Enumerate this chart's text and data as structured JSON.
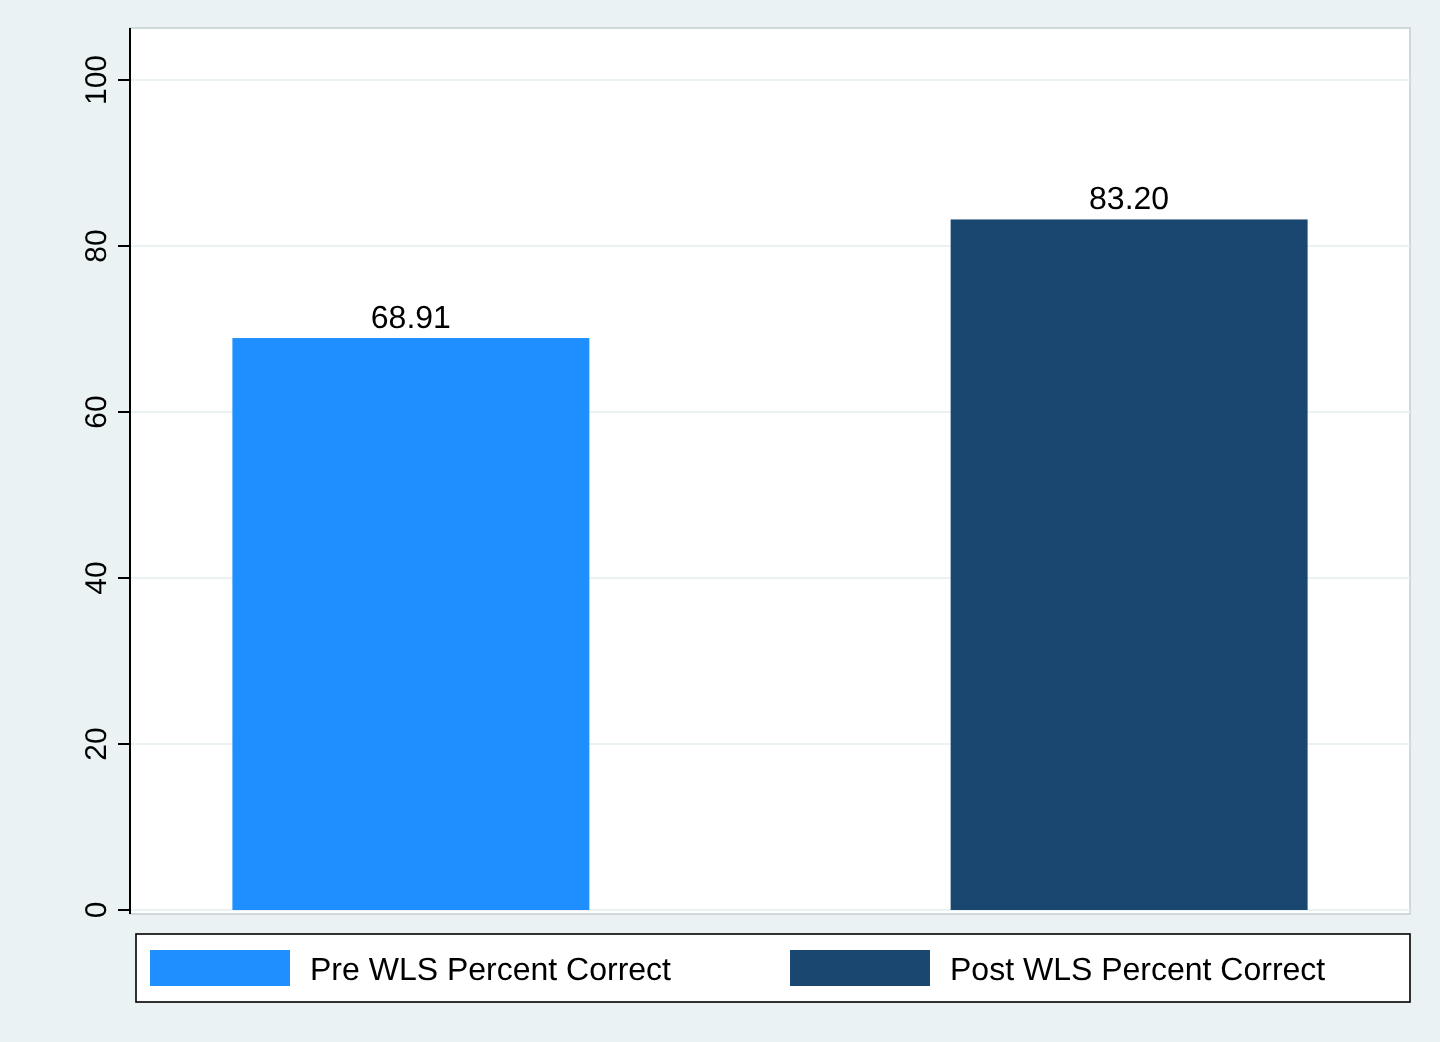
{
  "chart_data": {
    "type": "bar",
    "categories": [
      null
    ],
    "series": [
      {
        "name": "Pre WLS Percent Correct",
        "color": "#1f8fff",
        "values": [
          68.91
        ],
        "value_labels": [
          "68.91"
        ]
      },
      {
        "name": "Post WLS Percent Correct",
        "color": "#1a476f",
        "values": [
          83.2
        ],
        "value_labels": [
          "83.20"
        ]
      }
    ],
    "ylim": [
      0,
      100
    ],
    "yticks": [
      0,
      20,
      40,
      60,
      80,
      100
    ],
    "grid": "y",
    "legend": "bottom"
  }
}
